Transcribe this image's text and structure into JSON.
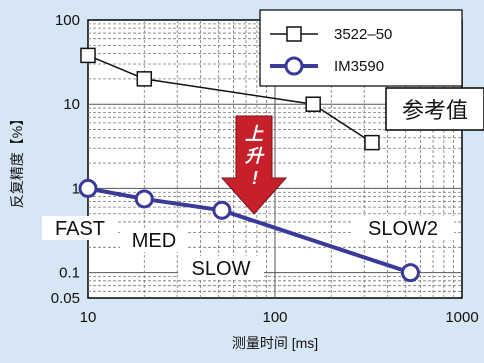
{
  "chart_data": {
    "type": "line",
    "x_scale": "log",
    "y_scale": "log",
    "xlim": [
      10,
      1000
    ],
    "ylim": [
      0.05,
      100
    ],
    "xlabel": "测量时间 [ms]",
    "ylabel": "反复精度【%】",
    "x_ticks": [
      {
        "v": 10,
        "label": "10"
      },
      {
        "v": 100,
        "label": "100"
      },
      {
        "v": 1000,
        "label": "1000"
      }
    ],
    "y_ticks": [
      {
        "v": 100,
        "label": "100"
      },
      {
        "v": 10,
        "label": "10"
      },
      {
        "v": 1,
        "label": "1"
      },
      {
        "v": 0.1,
        "label": "0.1"
      },
      {
        "v": 0.05,
        "label": "0.05"
      }
    ],
    "grid": true,
    "series": [
      {
        "name": "3522–50",
        "color": "#111111",
        "marker": "square",
        "x": [
          10,
          20,
          160,
          330
        ],
        "y": [
          38,
          20,
          10,
          3.5
        ]
      },
      {
        "name": "IM3590",
        "color": "#3a3a9a",
        "marker": "circle",
        "x": [
          10,
          20,
          52,
          530
        ],
        "y": [
          1,
          0.75,
          0.55,
          0.1
        ]
      }
    ],
    "point_labels": [
      "FAST",
      "MED",
      "SLOW",
      "SLOW2"
    ],
    "annotations": {
      "reference": "参考值",
      "arrow_text": [
        "上",
        "升",
        "!"
      ]
    },
    "legend_position": "top-right",
    "colors": {
      "arrow": "#c8202a",
      "background": "#d6e6f4",
      "im3590": "#3a3a9a"
    }
  }
}
